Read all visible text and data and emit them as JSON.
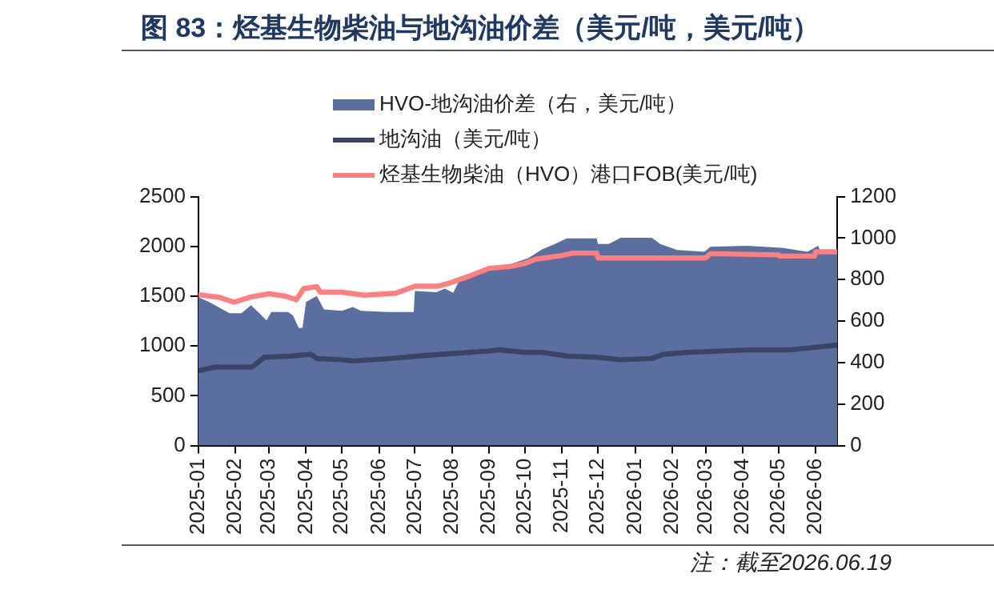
{
  "chart_data": {
    "type": "line",
    "title": "图 83：烃基生物柴油与地沟油价差（美元/吨，美元/吨）",
    "annotations": [
      "注：截至2026.06.19"
    ],
    "legend": "top",
    "grid": false,
    "marker": "none",
    "xlim": [
      "2025-01-01",
      "2026-06-19"
    ],
    "xticks": [
      {
        "value": "2025-01-01",
        "label": "2025-01"
      },
      {
        "value": "2025-02-01",
        "label": "2025-02"
      },
      {
        "value": "2025-03-01",
        "label": "2025-03"
      },
      {
        "value": "2025-04-01",
        "label": "2025-04"
      },
      {
        "value": "2025-05-01",
        "label": "2025-05"
      },
      {
        "value": "2025-06-01",
        "label": "2025-06"
      },
      {
        "value": "2025-07-01",
        "label": "2025-07"
      },
      {
        "value": "2025-08-01",
        "label": "2025-08"
      },
      {
        "value": "2025-09-01",
        "label": "2025-09"
      },
      {
        "value": "2025-10-01",
        "label": "2025-10"
      },
      {
        "value": "2025-11-01",
        "label": "2025-11"
      },
      {
        "value": "2025-12-01",
        "label": "2025-12"
      },
      {
        "value": "2026-01-01",
        "label": "2026-01"
      },
      {
        "value": "2026-02-01",
        "label": "2026-02"
      },
      {
        "value": "2026-03-01",
        "label": "2026-03"
      },
      {
        "value": "2026-04-01",
        "label": "2026-04"
      },
      {
        "value": "2026-05-01",
        "label": "2026-05"
      },
      {
        "value": "2026-06-01",
        "label": "2026-06"
      }
    ],
    "ylim": [
      0,
      2500
    ],
    "yticks": [
      0,
      500,
      1000,
      1500,
      2000,
      2500
    ],
    "y2lim": [
      0,
      1200
    ],
    "y2ticks": [
      0,
      200,
      400,
      600,
      800,
      1000,
      1200
    ],
    "series": [
      {
        "name": "HVO-地沟油价差（右，美元/吨）",
        "type": "area",
        "axis": "y2",
        "color": "#5a6ea0",
        "x": [
          "2025-01-01",
          "2025-01-10",
          "2025-01-27",
          "2025-02-06",
          "2025-02-14",
          "2025-02-22",
          "2025-02-27",
          "2025-03-03",
          "2025-03-17",
          "2025-03-21",
          "2025-03-26",
          "2025-03-29",
          "2025-04-01",
          "2025-04-10",
          "2025-04-16",
          "2025-05-01",
          "2025-05-10",
          "2025-05-17",
          "2025-06-08",
          "2025-06-30",
          "2025-07-01",
          "2025-07-19",
          "2025-07-26",
          "2025-08-02",
          "2025-08-07",
          "2025-08-17",
          "2025-09-01",
          "2025-09-16",
          "2025-10-04",
          "2025-10-15",
          "2025-10-26",
          "2025-11-05",
          "2025-11-30",
          "2025-12-01",
          "2025-12-10",
          "2025-12-20",
          "2026-01-15",
          "2026-01-22",
          "2026-02-05",
          "2026-02-28",
          "2026-03-05",
          "2026-04-05",
          "2026-05-05",
          "2026-05-25",
          "2026-06-03",
          "2026-06-05",
          "2026-06-19"
        ],
        "values": [
          715,
          692,
          638,
          638,
          677,
          632,
          603,
          644,
          644,
          627,
          567,
          567,
          692,
          721,
          656,
          650,
          668,
          650,
          644,
          644,
          745,
          739,
          757,
          736,
          795,
          824,
          863,
          869,
          904,
          945,
          972,
          999,
          999,
          972,
          972,
          1002,
          1002,
          972,
          943,
          934,
          958,
          963,
          952,
          934,
          963,
          937,
          937
        ]
      },
      {
        "name": "地沟油（美元/吨）",
        "color": "#3b4464",
        "x": [
          "2025-01-01",
          "2025-01-15",
          "2025-02-15",
          "2025-02-25",
          "2025-03-20",
          "2025-04-05",
          "2025-04-10",
          "2025-05-01",
          "2025-05-10",
          "2025-06-10",
          "2025-07-10",
          "2025-08-30",
          "2025-09-10",
          "2025-09-30",
          "2025-10-15",
          "2025-11-05",
          "2025-11-30",
          "2025-12-20",
          "2026-01-15",
          "2026-01-25",
          "2026-02-15",
          "2026-04-05",
          "2026-05-10",
          "2026-06-04",
          "2026-06-19"
        ],
        "values": [
          751,
          788,
          788,
          887,
          899,
          917,
          874,
          862,
          850,
          874,
          905,
          948,
          961,
          936,
          936,
          899,
          887,
          862,
          874,
          917,
          936,
          960,
          960,
          991,
          1010
        ]
      },
      {
        "name": "烃基生物柴油（HVO）港口FOB(美元/吨)",
        "color": "#ff7f7f",
        "x": [
          "2025-01-01",
          "2025-01-18",
          "2025-01-31",
          "2025-02-13",
          "2025-03-01",
          "2025-03-15",
          "2025-03-24",
          "2025-03-30",
          "2025-04-10",
          "2025-04-13",
          "2025-05-01",
          "2025-05-20",
          "2025-06-15",
          "2025-07-01",
          "2025-07-20",
          "2025-08-01",
          "2025-08-15",
          "2025-09-01",
          "2025-09-20",
          "2025-10-01",
          "2025-10-10",
          "2025-11-01",
          "2025-11-10",
          "2025-11-30",
          "2025-12-01",
          "2026-03-01",
          "2026-03-05",
          "2026-05-01",
          "2026-05-02",
          "2026-05-31",
          "2026-06-01",
          "2026-06-19"
        ],
        "values": [
          1515,
          1490,
          1440,
          1490,
          1525,
          1500,
          1465,
          1576,
          1595,
          1540,
          1540,
          1510,
          1530,
          1600,
          1600,
          1640,
          1700,
          1780,
          1800,
          1830,
          1872,
          1909,
          1933,
          1933,
          1884,
          1884,
          1927,
          1915,
          1903,
          1903,
          1946,
          1946
        ]
      }
    ]
  }
}
